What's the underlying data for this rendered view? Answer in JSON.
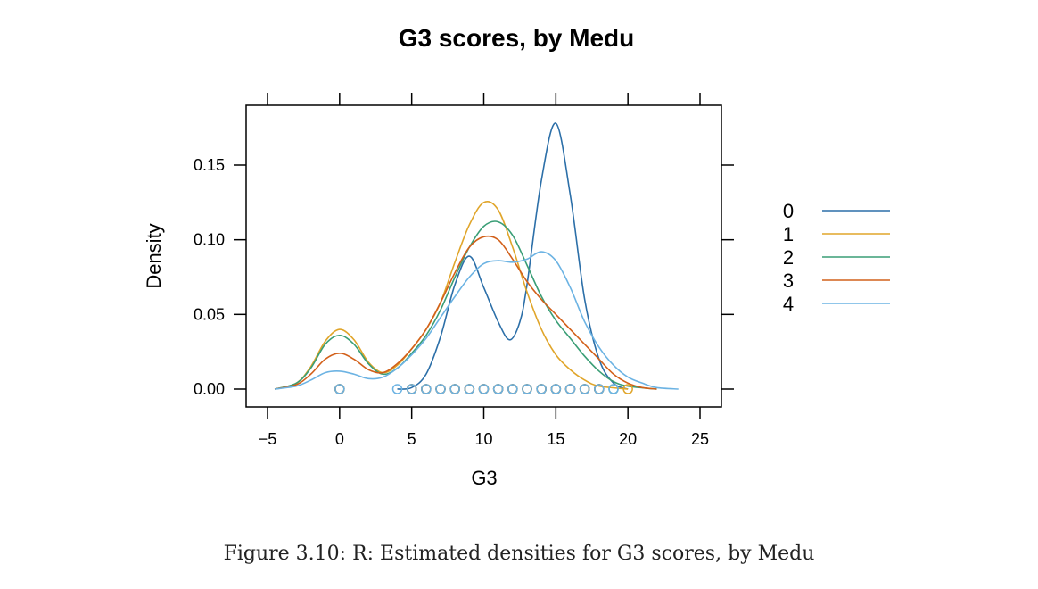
{
  "caption": "Figure 3.10: R: Estimated densities for G3 scores, by Medu",
  "chart_data": {
    "type": "line",
    "title": "G3 scores, by Medu",
    "xlabel": "G3",
    "ylabel": "Density",
    "xlim": [
      -5,
      25
    ],
    "ylim": [
      -0.01,
      0.19
    ],
    "x_ticks": [
      {
        "value": -5,
        "label": "−5"
      },
      {
        "value": 0,
        "label": "0"
      },
      {
        "value": 5,
        "label": "5"
      },
      {
        "value": 10,
        "label": "10"
      },
      {
        "value": 15,
        "label": "15"
      },
      {
        "value": 20,
        "label": "20"
      },
      {
        "value": 25,
        "label": "25"
      }
    ],
    "y_ticks": [
      {
        "value": 0.0,
        "label": "0.00"
      },
      {
        "value": 0.05,
        "label": "0.05"
      },
      {
        "value": 0.1,
        "label": "0.10"
      },
      {
        "value": 0.15,
        "label": "0.15"
      }
    ],
    "grid": false,
    "legend_position": "right",
    "series": [
      {
        "name": "0",
        "color": "#2C6FA8",
        "curve": [
          [
            4,
            0
          ],
          [
            5,
            0.001
          ],
          [
            6,
            0.01
          ],
          [
            7,
            0.035
          ],
          [
            8,
            0.07
          ],
          [
            9,
            0.089
          ],
          [
            10,
            0.068
          ],
          [
            11,
            0.045
          ],
          [
            11.8,
            0.033
          ],
          [
            12.5,
            0.045
          ],
          [
            13,
            0.07
          ],
          [
            14,
            0.14
          ],
          [
            15,
            0.178
          ],
          [
            16,
            0.13
          ],
          [
            17,
            0.06
          ],
          [
            18,
            0.02
          ],
          [
            19,
            0.004
          ],
          [
            20,
            0
          ]
        ],
        "points": [
          0,
          5,
          6,
          7,
          8,
          9,
          10,
          11,
          12,
          13,
          14,
          15,
          16,
          17,
          18
        ]
      },
      {
        "name": "1",
        "color": "#E0A52A",
        "curve": [
          [
            -4.5,
            0
          ],
          [
            -3,
            0.004
          ],
          [
            -2,
            0.015
          ],
          [
            -1,
            0.032
          ],
          [
            0,
            0.04
          ],
          [
            1,
            0.033
          ],
          [
            2,
            0.018
          ],
          [
            3,
            0.011
          ],
          [
            4,
            0.016
          ],
          [
            5,
            0.027
          ],
          [
            6,
            0.04
          ],
          [
            7,
            0.058
          ],
          [
            8,
            0.085
          ],
          [
            9,
            0.11
          ],
          [
            10,
            0.125
          ],
          [
            11,
            0.12
          ],
          [
            12,
            0.095
          ],
          [
            13,
            0.065
          ],
          [
            14,
            0.04
          ],
          [
            15,
            0.023
          ],
          [
            16,
            0.013
          ],
          [
            17,
            0.006
          ],
          [
            18,
            0.002
          ],
          [
            20,
            0
          ]
        ],
        "points": [
          0,
          5,
          6,
          7,
          8,
          9,
          10,
          11,
          12,
          13,
          14,
          15,
          16,
          17,
          18,
          20
        ]
      },
      {
        "name": "2",
        "color": "#3A9E76",
        "curve": [
          [
            -4.5,
            0
          ],
          [
            -3,
            0.004
          ],
          [
            -2,
            0.014
          ],
          [
            -1,
            0.03
          ],
          [
            0,
            0.036
          ],
          [
            1,
            0.03
          ],
          [
            2,
            0.017
          ],
          [
            3,
            0.01
          ],
          [
            4,
            0.014
          ],
          [
            5,
            0.024
          ],
          [
            6,
            0.036
          ],
          [
            7,
            0.053
          ],
          [
            8,
            0.075
          ],
          [
            9,
            0.095
          ],
          [
            10,
            0.109
          ],
          [
            11,
            0.112
          ],
          [
            12,
            0.103
          ],
          [
            13,
            0.083
          ],
          [
            14,
            0.062
          ],
          [
            15,
            0.046
          ],
          [
            16,
            0.034
          ],
          [
            17,
            0.022
          ],
          [
            18,
            0.012
          ],
          [
            19,
            0.005
          ],
          [
            20,
            0.002
          ],
          [
            22,
            0
          ]
        ],
        "points": [
          0,
          5,
          6,
          7,
          8,
          9,
          10,
          11,
          12,
          13,
          14,
          15,
          16,
          17,
          18,
          19
        ]
      },
      {
        "name": "3",
        "color": "#D2601A",
        "curve": [
          [
            -4.5,
            0
          ],
          [
            -3,
            0.003
          ],
          [
            -2,
            0.01
          ],
          [
            -1,
            0.02
          ],
          [
            0,
            0.024
          ],
          [
            1,
            0.02
          ],
          [
            2,
            0.013
          ],
          [
            3,
            0.011
          ],
          [
            4,
            0.017
          ],
          [
            5,
            0.027
          ],
          [
            6,
            0.04
          ],
          [
            7,
            0.058
          ],
          [
            8,
            0.078
          ],
          [
            9,
            0.095
          ],
          [
            10,
            0.102
          ],
          [
            11,
            0.1
          ],
          [
            12,
            0.087
          ],
          [
            13,
            0.072
          ],
          [
            14,
            0.06
          ],
          [
            15,
            0.05
          ],
          [
            16,
            0.04
          ],
          [
            17,
            0.03
          ],
          [
            18,
            0.02
          ],
          [
            19,
            0.01
          ],
          [
            20,
            0.004
          ],
          [
            21,
            0.001
          ],
          [
            22,
            0
          ]
        ],
        "points": [
          0,
          5,
          6,
          7,
          8,
          9,
          10,
          11,
          12,
          13,
          14,
          15,
          16,
          17,
          18
        ]
      },
      {
        "name": "4",
        "color": "#6CB3E3",
        "curve": [
          [
            -4.5,
            0
          ],
          [
            -3,
            0.002
          ],
          [
            -2,
            0.006
          ],
          [
            -1,
            0.011
          ],
          [
            0,
            0.012
          ],
          [
            1,
            0.01
          ],
          [
            2,
            0.007
          ],
          [
            3,
            0.008
          ],
          [
            4,
            0.014
          ],
          [
            5,
            0.023
          ],
          [
            6,
            0.034
          ],
          [
            7,
            0.048
          ],
          [
            8,
            0.062
          ],
          [
            9,
            0.075
          ],
          [
            10,
            0.084
          ],
          [
            11,
            0.086
          ],
          [
            12,
            0.085
          ],
          [
            13,
            0.087
          ],
          [
            14,
            0.092
          ],
          [
            15,
            0.086
          ],
          [
            16,
            0.068
          ],
          [
            17,
            0.045
          ],
          [
            18,
            0.028
          ],
          [
            19,
            0.016
          ],
          [
            20,
            0.008
          ],
          [
            21,
            0.004
          ],
          [
            22,
            0.001
          ],
          [
            23.5,
            0
          ]
        ],
        "points": [
          0,
          4,
          5,
          6,
          7,
          8,
          9,
          10,
          11,
          12,
          13,
          14,
          15,
          16,
          17,
          18,
          19
        ]
      }
    ]
  }
}
